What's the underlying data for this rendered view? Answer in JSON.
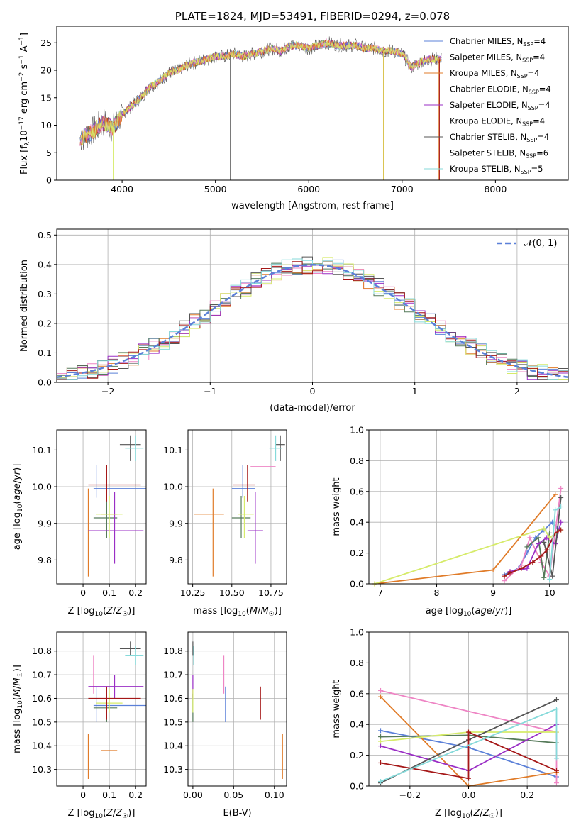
{
  "chart_data": [
    {
      "id": "spectrum",
      "type": "line",
      "title": "PLATE=1824, MJD=53491, FIBERID=0294, z=0.078",
      "xlabel": "wavelength [Angstrom, rest frame]",
      "ylabel": "Flux [f_λ10^-17 erg cm^-2 s^-1 A^-1]",
      "xlim": [
        3300,
        8780
      ],
      "ylim": [
        0,
        28
      ],
      "xticks": [
        4000,
        5000,
        6000,
        7000,
        8000
      ],
      "yticks": [
        0,
        5,
        10,
        15,
        20,
        25
      ],
      "legend_position": "right",
      "continuum": {
        "x": [
          3550,
          3600,
          3700,
          3800,
          3900,
          4000,
          4100,
          4200,
          4300,
          4400,
          4500,
          4600,
          4700,
          4800,
          4900,
          5000,
          5100,
          5200,
          5300,
          5400,
          5500,
          5600,
          5700,
          5800,
          5900,
          6000,
          6100,
          6200,
          6300,
          6400,
          6500,
          6600,
          6700,
          6800,
          6900,
          7000,
          7100,
          7200,
          7300,
          7400
        ],
        "y": [
          7.5,
          8,
          9,
          10.5,
          9.5,
          12,
          13.5,
          15,
          17,
          18,
          19.5,
          20,
          21,
          21.5,
          22,
          22.5,
          22.5,
          23,
          22.5,
          23,
          23.5,
          24,
          23.5,
          24.5,
          24.5,
          24,
          24.5,
          25,
          24.5,
          24.5,
          24.5,
          24,
          24,
          23.5,
          23.5,
          23,
          20.5,
          21.5,
          22,
          22
        ]
      },
      "series": [
        {
          "name": "Chabrier MILES, N_SSP=4",
          "color": "#5b80d8"
        },
        {
          "name": "Salpeter MILES, N_SSP=4",
          "color": "#ee84c4"
        },
        {
          "name": "Kroupa MILES, N_SSP=4",
          "color": "#e07b28"
        },
        {
          "name": "Chabrier ELODIE, N_SSP=4",
          "color": "#567a5a"
        },
        {
          "name": "Salpeter ELODIE, N_SSP=4",
          "color": "#9a2ec5"
        },
        {
          "name": "Kroupa ELODIE, N_SSP=4",
          "color": "#d6eb6a"
        },
        {
          "name": "Chabrier STELIB, N_SSP=4",
          "color": "#555555"
        },
        {
          "name": "Salpeter STELIB, N_SSP=6",
          "color": "#a51818"
        },
        {
          "name": "Kroupa STELIB, N_SSP=5",
          "color": "#86dada"
        }
      ]
    },
    {
      "id": "residuals",
      "type": "line",
      "xlabel": "(data-model)/error",
      "ylabel": "Normed distribution",
      "xlim": [
        -2.5,
        2.5
      ],
      "ylim": [
        0,
        0.52
      ],
      "xticks": [
        -2,
        -1,
        0,
        1,
        2
      ],
      "yticks": [
        0.0,
        0.1,
        0.2,
        0.3,
        0.4,
        0.5
      ],
      "grid": true,
      "legend_position": "top-right",
      "legend": [
        "𝒩(0, 1)"
      ],
      "reference_curve": {
        "name": "𝒩(0, 1)",
        "mean": 0,
        "sigma": 1,
        "color": "#5b80d8"
      },
      "bin_width": 0.1
    },
    {
      "id": "age_vs_Z",
      "type": "scatter",
      "xlabel": "Z [log10(Z/Z☉)]",
      "ylabel": "age  [log10(age/yr)]",
      "xlim": [
        -0.1,
        0.24
      ],
      "ylim": [
        9.735,
        10.155
      ],
      "xticks": [
        0.0,
        0.1,
        0.2
      ],
      "ytick_values": [
        9.8,
        9.9,
        10.0,
        10.1
      ],
      "ytick_labels": [
        "9.8",
        "9.9",
        "10.0",
        "10.1"
      ],
      "grid": true
    },
    {
      "id": "age_vs_mass",
      "type": "scatter",
      "xlabel": "mass [log10(M/M☉)]",
      "xlim": [
        10.22,
        10.85
      ],
      "ylim": [
        9.735,
        10.155
      ],
      "xticks": [
        10.25,
        10.5,
        10.75
      ],
      "xtick_labels": [
        "10.25",
        "10.50",
        "10.75"
      ],
      "ytick_values": [
        9.8,
        9.9,
        10.0,
        10.1
      ],
      "ytick_labels": [
        "9.8",
        "9.9",
        "10.0",
        "10.1"
      ],
      "grid": true
    },
    {
      "id": "weight_vs_age",
      "type": "line",
      "xlabel": "age  [log10(age/yr)]",
      "ylabel": "mass weight",
      "xlim": [
        6.8,
        10.33
      ],
      "ylim": [
        0,
        1
      ],
      "xticks": [
        7,
        8,
        9,
        10
      ],
      "yticks": [
        0.0,
        0.2,
        0.4,
        0.6,
        0.8,
        1.0
      ],
      "grid": true
    },
    {
      "id": "mass_vs_Z",
      "type": "scatter",
      "xlabel": "Z [log10(Z/Z☉)]",
      "ylabel": "mass [log10(M/M☉)]",
      "xlim": [
        -0.1,
        0.24
      ],
      "ylim": [
        10.23,
        10.88
      ],
      "xticks": [
        0.0,
        0.1,
        0.2
      ],
      "ytick_values": [
        10.3,
        10.4,
        10.5,
        10.6,
        10.7,
        10.8
      ],
      "ytick_labels": [
        "10.3",
        "10.4",
        "10.5",
        "10.6",
        "10.7",
        "10.8"
      ],
      "grid": true
    },
    {
      "id": "mass_vs_ebv",
      "type": "scatter",
      "xlabel": "E(B-V)",
      "xlim": [
        -0.006,
        0.115
      ],
      "ylim": [
        10.23,
        10.88
      ],
      "xticks": [
        0.0,
        0.05,
        0.1
      ],
      "xtick_labels": [
        "0.00",
        "0.05",
        "0.10"
      ],
      "ytick_values": [
        10.3,
        10.4,
        10.5,
        10.6,
        10.7,
        10.8
      ],
      "ytick_labels": [
        "10.3",
        "10.4",
        "10.5",
        "10.6",
        "10.7",
        "10.8"
      ],
      "grid": true
    },
    {
      "id": "weight_vs_Z",
      "type": "line",
      "xlabel": "Z [log10(Z/Z☉)]",
      "ylabel": "mass weight",
      "xlim": [
        -0.34,
        0.34
      ],
      "ylim": [
        0,
        1
      ],
      "xticks": [
        -0.2,
        0.0,
        0.2
      ],
      "xtick_labels": [
        "−0.2",
        "0.0",
        "0.2"
      ],
      "yticks": [
        0.0,
        0.2,
        0.4,
        0.6,
        0.8,
        1.0
      ],
      "grid": true
    }
  ],
  "fits": [
    {
      "color": "#5b80d8",
      "Z": [
        0.05,
        0.04,
        0.24
      ],
      "age": [
        9.995,
        9.97,
        10.06
      ],
      "mass": [
        10.57,
        10.5,
        10.65
      ],
      "ebv": 0.04,
      "age_w": [
        [
          9.2,
          0.06
        ],
        [
          9.45,
          0.1
        ],
        [
          9.6,
          0.2
        ],
        [
          9.75,
          0.3
        ],
        [
          9.9,
          0.35
        ],
        [
          10.05,
          0.4
        ],
        [
          10.15,
          0.36
        ]
      ],
      "z_w": [
        [
          -0.3,
          0.36
        ],
        [
          0.0,
          0.25
        ],
        [
          0.3,
          0.06
        ]
      ]
    },
    {
      "color": "#ee84c4",
      "Z": [
        0.04,
        0.07,
        0.07
      ],
      "age": [
        10.055,
        10.06,
        10.06
      ],
      "mass": [
        10.69,
        10.62,
        10.78
      ],
      "ebv": 0.038,
      "age_w": [
        [
          9.2,
          0.02
        ],
        [
          9.5,
          0.12
        ],
        [
          9.65,
          0.3
        ],
        [
          9.85,
          0.14
        ],
        [
          10.0,
          0.05
        ],
        [
          10.2,
          0.62
        ]
      ],
      "z_w": [
        [
          -0.3,
          0.62
        ],
        [
          0.3,
          0.35
        ],
        [
          0.3,
          0.02
        ]
      ]
    },
    {
      "color": "#e07b28",
      "Z": [
        0.02,
        0.07,
        0.13
      ],
      "age": [
        9.925,
        9.755,
        9.995
      ],
      "mass": [
        10.38,
        10.26,
        10.45
      ],
      "ebv": 0.11,
      "age_w": [
        [
          6.9,
          0.0
        ],
        [
          9.0,
          0.09
        ],
        [
          10.1,
          0.58
        ]
      ],
      "z_w": [
        [
          -0.3,
          0.58
        ],
        [
          0.0,
          0.0
        ],
        [
          0.3,
          0.09
        ]
      ]
    },
    {
      "color": "#567a5a",
      "Z": [
        0.09,
        0.04,
        0.13
      ],
      "age": [
        9.915,
        9.86,
        9.975
      ],
      "mass": [
        10.56,
        10.5,
        10.62
      ],
      "ebv": 0.0,
      "age_w": [
        [
          9.6,
          0.24
        ],
        [
          9.8,
          0.3
        ],
        [
          9.9,
          0.04
        ],
        [
          10.0,
          0.33
        ]
      ],
      "z_w": [
        [
          -0.3,
          0.32
        ],
        [
          0.0,
          0.33
        ],
        [
          0.3,
          0.28
        ]
      ]
    },
    {
      "color": "#9a2ec5",
      "Z": [
        0.12,
        0.02,
        0.23
      ],
      "age": [
        9.88,
        9.79,
        9.985
      ],
      "mass": [
        10.65,
        10.6,
        10.7
      ],
      "ebv": 0.0,
      "age_w": [
        [
          9.3,
          0.08
        ],
        [
          9.6,
          0.1
        ],
        [
          9.8,
          0.26
        ],
        [
          9.95,
          0.3
        ],
        [
          10.1,
          0.26
        ],
        [
          10.2,
          0.4
        ]
      ],
      "z_w": [
        [
          -0.3,
          0.26
        ],
        [
          0.0,
          0.1
        ],
        [
          0.3,
          0.4
        ]
      ]
    },
    {
      "color": "#d6eb6a",
      "Z": [
        0.1,
        0.05,
        0.15
      ],
      "age": [
        9.925,
        9.86,
        9.975
      ],
      "mass": [
        10.58,
        10.54,
        10.64
      ],
      "ebv": 0.0,
      "age_w": [
        [
          6.9,
          0.0
        ],
        [
          9.9,
          0.36
        ],
        [
          10.0,
          0.3
        ],
        [
          10.2,
          0.35
        ]
      ],
      "z_w": [
        [
          -0.3,
          0.29
        ],
        [
          0.0,
          0.35
        ],
        [
          0.3,
          0.35
        ]
      ]
    },
    {
      "color": "#555555",
      "Z": [
        0.18,
        0.14,
        0.22
      ],
      "age": [
        10.115,
        10.07,
        10.14
      ],
      "mass": [
        10.81,
        10.78,
        10.84
      ],
      "ebv": 0.0,
      "age_w": [
        [
          9.9,
          0.27
        ],
        [
          10.05,
          0.05
        ],
        [
          10.2,
          0.56
        ]
      ],
      "z_w": [
        [
          -0.3,
          0.02
        ],
        [
          0.0,
          0.3
        ],
        [
          0.3,
          0.56
        ]
      ]
    },
    {
      "color": "#a51818",
      "Z": [
        0.09,
        0.02,
        0.22
      ],
      "age": [
        10.005,
        9.96,
        10.06
      ],
      "mass": [
        10.6,
        10.51,
        10.65
      ],
      "ebv": 0.083,
      "age_w": [
        [
          9.2,
          0.05
        ],
        [
          9.3,
          0.07
        ],
        [
          9.5,
          0.1
        ],
        [
          9.7,
          0.14
        ],
        [
          9.85,
          0.18
        ],
        [
          9.95,
          0.22
        ],
        [
          10.1,
          0.33
        ],
        [
          10.2,
          0.35
        ]
      ],
      "z_w": [
        [
          -0.3,
          0.15
        ],
        [
          0.0,
          0.05
        ],
        [
          0.0,
          0.35
        ],
        [
          0.3,
          0.1
        ]
      ]
    },
    {
      "color": "#86dada",
      "Z": [
        0.2,
        0.16,
        0.23
      ],
      "age": [
        10.105,
        10.07,
        10.14
      ],
      "mass": [
        10.78,
        10.74,
        10.82
      ],
      "ebv": 0.001,
      "age_w": [
        [
          10.0,
          0.03
        ],
        [
          10.1,
          0.48
        ],
        [
          10.2,
          0.5
        ]
      ],
      "z_w": [
        [
          -0.3,
          0.03
        ],
        [
          0.3,
          0.5
        ],
        [
          0.3,
          0.18
        ]
      ]
    }
  ]
}
